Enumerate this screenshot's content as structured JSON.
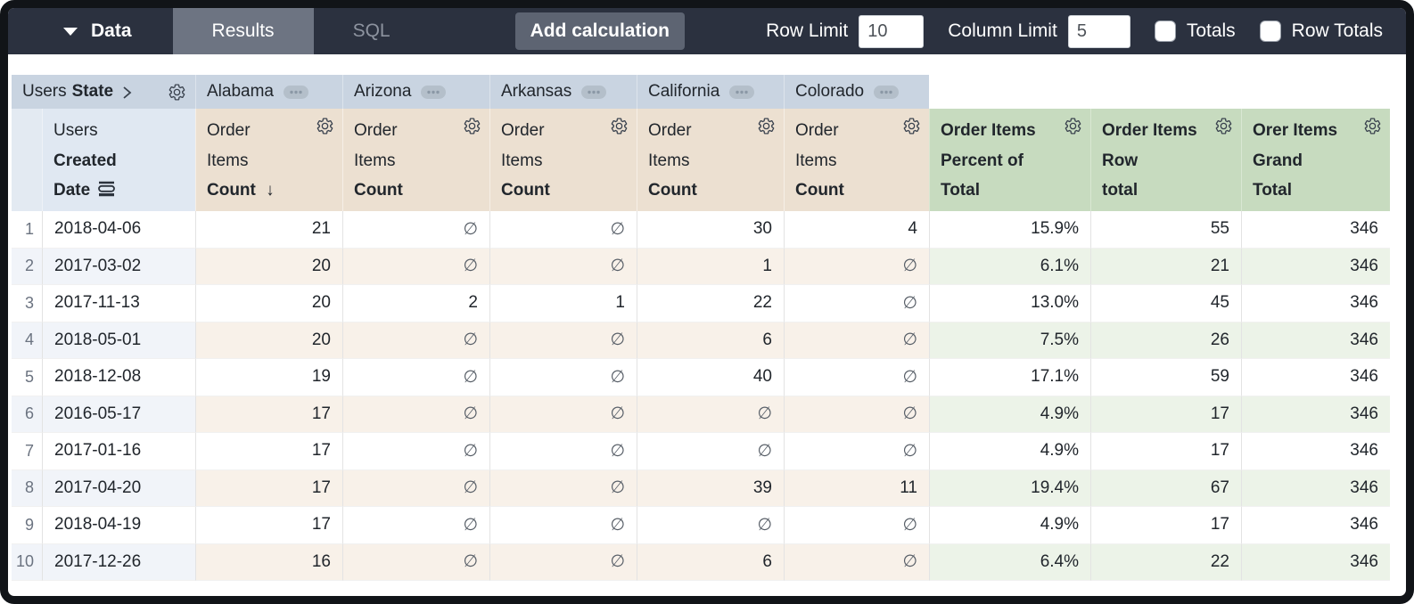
{
  "toolbar": {
    "data_label": "Data",
    "tabs": [
      {
        "label": "Results",
        "active": true
      },
      {
        "label": "SQL",
        "active": false
      }
    ],
    "add_calculation_label": "Add calculation",
    "row_limit_label": "Row Limit",
    "row_limit_value": "10",
    "column_limit_label": "Column Limit",
    "column_limit_value": "5",
    "totals_label": "Totals",
    "totals_checked": false,
    "row_totals_label": "Row Totals",
    "row_totals_checked": false
  },
  "pivot": {
    "field_view": "Users",
    "field_name": "State",
    "values": [
      "Alabama",
      "Arizona",
      "Arkansas",
      "California",
      "Colorado"
    ]
  },
  "dimension_header": {
    "line1": "Users",
    "line2": "Created",
    "line3": "Date"
  },
  "measure_headers": [
    {
      "line1": "Order",
      "line2": "Items",
      "line3": "Count",
      "sorted_desc": true
    },
    {
      "line1": "Order",
      "line2": "Items",
      "line3": "Count",
      "sorted_desc": false
    },
    {
      "line1": "Order",
      "line2": "Items",
      "line3": "Count",
      "sorted_desc": false
    },
    {
      "line1": "Order",
      "line2": "Items",
      "line3": "Count",
      "sorted_desc": false
    },
    {
      "line1": "Order",
      "line2": "Items",
      "line3": "Count",
      "sorted_desc": false
    }
  ],
  "calc_headers": [
    {
      "line1": "Order Items",
      "line2": "Percent of",
      "line3": "Total"
    },
    {
      "line1": "Order Items",
      "line2": "Row",
      "line3": "total"
    },
    {
      "line1": "Orer Items",
      "line2": "Grand",
      "line3": "Total"
    }
  ],
  "null_symbol": "∅",
  "sort_arrow": "↓",
  "table": {
    "rows": [
      {
        "index": "1",
        "date": "2018-04-06",
        "measures": [
          "21",
          "∅",
          "∅",
          "30",
          "4"
        ],
        "calcs": [
          "15.9%",
          "55",
          "346"
        ]
      },
      {
        "index": "2",
        "date": "2017-03-02",
        "measures": [
          "20",
          "∅",
          "∅",
          "1",
          "∅"
        ],
        "calcs": [
          "6.1%",
          "21",
          "346"
        ]
      },
      {
        "index": "3",
        "date": "2017-11-13",
        "measures": [
          "20",
          "2",
          "1",
          "22",
          "∅"
        ],
        "calcs": [
          "13.0%",
          "45",
          "346"
        ]
      },
      {
        "index": "4",
        "date": "2018-05-01",
        "measures": [
          "20",
          "∅",
          "∅",
          "6",
          "∅"
        ],
        "calcs": [
          "7.5%",
          "26",
          "346"
        ]
      },
      {
        "index": "5",
        "date": "2018-12-08",
        "measures": [
          "19",
          "∅",
          "∅",
          "40",
          "∅"
        ],
        "calcs": [
          "17.1%",
          "59",
          "346"
        ]
      },
      {
        "index": "6",
        "date": "2016-05-17",
        "measures": [
          "17",
          "∅",
          "∅",
          "∅",
          "∅"
        ],
        "calcs": [
          "4.9%",
          "17",
          "346"
        ]
      },
      {
        "index": "7",
        "date": "2017-01-16",
        "measures": [
          "17",
          "∅",
          "∅",
          "∅",
          "∅"
        ],
        "calcs": [
          "4.9%",
          "17",
          "346"
        ]
      },
      {
        "index": "8",
        "date": "2017-04-20",
        "measures": [
          "17",
          "∅",
          "∅",
          "39",
          "11"
        ],
        "calcs": [
          "19.4%",
          "67",
          "346"
        ]
      },
      {
        "index": "9",
        "date": "2018-04-19",
        "measures": [
          "17",
          "∅",
          "∅",
          "∅",
          "∅"
        ],
        "calcs": [
          "4.9%",
          "17",
          "346"
        ]
      },
      {
        "index": "10",
        "date": "2017-12-26",
        "measures": [
          "16",
          "∅",
          "∅",
          "6",
          "∅"
        ],
        "calcs": [
          "6.4%",
          "22",
          "346"
        ]
      }
    ]
  },
  "colors": {
    "toolbar_bg": "#2b313f",
    "active_tab_bg": "#6d7482",
    "button_bg": "#5d6472",
    "pivot_header_bg": "#c9d4e1",
    "dimension_header_bg": "#e0e8f2",
    "measure_header_bg": "#ece0d1",
    "calc_header_bg": "#c7dbbf",
    "alt_row_dim": "#f1f4f9",
    "alt_row_measure": "#f8f1e9",
    "alt_row_calc": "#ecf3e8"
  }
}
